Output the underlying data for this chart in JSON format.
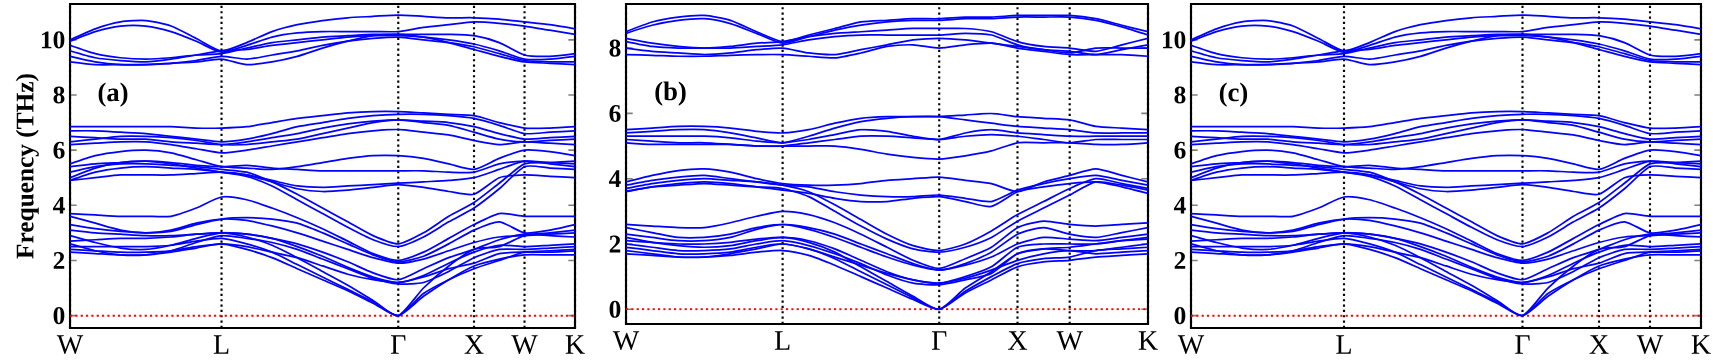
{
  "chart_data": [
    {
      "type": "line",
      "ylabel": "Frequency (THz)",
      "annotations": [
        "(a)"
      ],
      "color": "#0000ff",
      "marker": "none",
      "line_style": "solid",
      "grid": "x",
      "categories": [
        "W",
        null,
        null,
        null,
        null,
        null,
        "L",
        null,
        null,
        null,
        null,
        null,
        null,
        "Γ",
        null,
        null,
        "X",
        null,
        "W",
        null,
        "K"
      ],
      "ylim": [
        -0.45,
        11.3
      ],
      "yticks": [
        0,
        2,
        4,
        6,
        8,
        10
      ],
      "ref_lines": [
        {
          "axis": "y",
          "value": 0,
          "color": "#ff0000",
          "line_style": "dotted"
        }
      ],
      "series": [
        {
          "values": [
            10.0,
            10.4,
            10.65,
            10.7,
            10.5,
            10.05,
            9.6,
            9.9,
            10.3,
            10.55,
            10.7,
            10.8,
            10.85,
            10.9,
            10.85,
            10.8,
            10.8,
            10.75,
            10.65,
            10.55,
            10.4
          ]
        },
        {
          "values": [
            9.95,
            10.3,
            10.5,
            10.5,
            10.3,
            9.95,
            9.55,
            9.8,
            10.1,
            10.25,
            10.3,
            10.3,
            10.3,
            10.3,
            10.45,
            10.55,
            10.65,
            10.6,
            10.5,
            10.35,
            10.2
          ]
        },
        {
          "values": [
            9.8,
            9.5,
            9.35,
            9.3,
            9.35,
            9.45,
            9.5,
            9.7,
            9.9,
            10.0,
            10.1,
            10.15,
            10.2,
            10.2,
            10.2,
            10.2,
            10.15,
            9.9,
            9.45,
            9.4,
            9.5
          ]
        },
        {
          "values": [
            9.6,
            9.35,
            9.25,
            9.2,
            9.3,
            9.45,
            9.6,
            9.65,
            9.8,
            9.9,
            10.0,
            10.1,
            10.15,
            10.15,
            10.1,
            10.0,
            9.85,
            9.6,
            9.3,
            9.3,
            9.4
          ]
        },
        {
          "values": [
            9.4,
            9.2,
            9.1,
            9.1,
            9.15,
            9.25,
            9.4,
            9.3,
            9.45,
            9.6,
            9.8,
            9.95,
            10.05,
            10.1,
            10.0,
            9.9,
            9.75,
            9.5,
            9.25,
            9.2,
            9.2
          ]
        },
        {
          "values": [
            9.2,
            9.1,
            9.1,
            9.1,
            9.15,
            9.2,
            9.3,
            9.1,
            9.2,
            9.4,
            9.7,
            9.95,
            10.15,
            10.2,
            10.1,
            9.9,
            9.65,
            9.4,
            9.2,
            9.15,
            9.1
          ]
        },
        {
          "values": [
            6.85,
            6.85,
            6.85,
            6.85,
            6.85,
            6.8,
            6.8,
            6.85,
            7.0,
            7.15,
            7.25,
            7.35,
            7.4,
            7.4,
            7.35,
            7.3,
            7.25,
            7.0,
            6.8,
            6.8,
            6.85
          ]
        },
        {
          "values": [
            6.7,
            6.7,
            6.65,
            6.6,
            6.5,
            6.4,
            6.3,
            6.4,
            6.6,
            6.85,
            7.0,
            7.15,
            7.25,
            7.3,
            7.3,
            7.25,
            7.15,
            6.9,
            6.6,
            6.65,
            6.7
          ]
        },
        {
          "values": [
            6.5,
            6.45,
            6.4,
            6.4,
            6.3,
            6.25,
            6.2,
            6.3,
            6.45,
            6.6,
            6.8,
            6.95,
            7.05,
            7.1,
            7.05,
            7.0,
            6.85,
            6.6,
            6.4,
            6.45,
            6.5
          ]
        },
        {
          "values": [
            6.3,
            6.4,
            6.5,
            6.5,
            6.45,
            6.35,
            6.2,
            6.2,
            6.3,
            6.4,
            6.6,
            6.8,
            7.0,
            7.1,
            7.0,
            6.9,
            6.65,
            6.4,
            6.3,
            6.35,
            6.4
          ]
        },
        {
          "values": [
            6.2,
            6.25,
            6.3,
            6.3,
            6.2,
            6.05,
            5.9,
            6.0,
            6.15,
            6.3,
            6.45,
            6.6,
            6.7,
            6.75,
            6.65,
            6.55,
            6.35,
            6.2,
            6.3,
            6.25,
            6.2
          ]
        },
        {
          "values": [
            5.5,
            5.8,
            5.95,
            6.0,
            5.9,
            5.65,
            5.4,
            5.35,
            5.3,
            5.4,
            5.55,
            5.7,
            5.8,
            5.8,
            5.7,
            5.5,
            5.3,
            5.7,
            6.0,
            5.95,
            5.8
          ]
        },
        {
          "values": [
            5.4,
            5.5,
            5.55,
            5.6,
            5.55,
            5.45,
            5.4,
            5.45,
            5.35,
            5.3,
            5.25,
            5.25,
            5.25,
            5.25,
            5.25,
            5.2,
            5.2,
            5.5,
            5.6,
            5.55,
            5.5
          ]
        },
        {
          "values": [
            5.0,
            5.35,
            5.55,
            5.6,
            5.5,
            5.35,
            5.2,
            5.1,
            4.9,
            4.7,
            4.65,
            4.7,
            4.75,
            4.8,
            4.85,
            4.9,
            5.0,
            5.3,
            5.6,
            5.5,
            5.4
          ]
        },
        {
          "values": [
            4.9,
            5.0,
            5.1,
            5.1,
            5.1,
            5.15,
            5.2,
            5.1,
            4.85,
            4.6,
            4.5,
            4.55,
            4.65,
            4.75,
            4.65,
            4.5,
            4.4,
            5.0,
            5.1,
            5.05,
            5.0
          ]
        },
        {
          "values": [
            5.2,
            5.4,
            5.5,
            5.5,
            5.45,
            5.4,
            5.3,
            5.2,
            4.85,
            4.4,
            3.9,
            3.4,
            2.9,
            2.6,
            3.0,
            3.6,
            4.1,
            4.8,
            5.5,
            5.55,
            5.6
          ]
        },
        {
          "values": [
            4.9,
            5.2,
            5.35,
            5.4,
            5.35,
            5.3,
            5.2,
            5.05,
            4.7,
            4.2,
            3.7,
            3.2,
            2.75,
            2.5,
            2.85,
            3.4,
            3.9,
            4.6,
            5.4,
            5.35,
            5.3
          ]
        },
        {
          "values": [
            3.7,
            3.65,
            3.6,
            3.6,
            3.6,
            3.9,
            4.3,
            4.2,
            3.9,
            3.55,
            3.15,
            2.7,
            2.25,
            2.0,
            2.3,
            2.8,
            3.3,
            3.7,
            3.6,
            3.6,
            3.6
          ]
        },
        {
          "values": [
            3.6,
            3.35,
            3.1,
            3.0,
            3.05,
            3.3,
            3.5,
            3.55,
            3.5,
            3.35,
            3.0,
            2.6,
            2.2,
            1.95,
            2.15,
            2.6,
            3.1,
            3.4,
            3.0,
            3.1,
            3.3
          ]
        },
        {
          "values": [
            3.3,
            3.15,
            3.05,
            3.0,
            3.1,
            3.35,
            3.5,
            3.45,
            3.25,
            3.0,
            2.7,
            2.4,
            2.1,
            1.9,
            2.05,
            2.35,
            2.65,
            2.85,
            2.9,
            2.95,
            3.0
          ]
        },
        {
          "values": [
            3.1,
            3.0,
            2.95,
            2.9,
            2.9,
            2.95,
            3.0,
            2.95,
            2.8,
            2.6,
            2.3,
            1.95,
            1.55,
            1.3,
            1.7,
            2.1,
            2.4,
            2.75,
            2.95,
            2.9,
            2.85
          ]
        },
        {
          "values": [
            2.9,
            2.65,
            2.45,
            2.4,
            2.55,
            2.8,
            3.0,
            2.95,
            2.8,
            2.5,
            2.15,
            1.75,
            1.4,
            1.2,
            1.45,
            1.9,
            2.3,
            2.55,
            2.5,
            2.55,
            2.6
          ]
        },
        {
          "values": [
            2.6,
            2.35,
            2.2,
            2.2,
            2.35,
            2.65,
            2.9,
            2.8,
            2.65,
            2.4,
            2.05,
            1.7,
            1.35,
            1.15,
            1.2,
            1.6,
            2.1,
            2.4,
            2.4,
            2.45,
            2.5
          ]
        },
        {
          "values": [
            2.4,
            2.35,
            2.3,
            2.3,
            2.35,
            2.5,
            2.6,
            2.5,
            2.3,
            2.1,
            1.8,
            1.5,
            1.3,
            1.2,
            1.4,
            1.7,
            1.9,
            2.25,
            2.3,
            2.3,
            2.35
          ]
        },
        {
          "values": [
            2.3,
            2.25,
            2.2,
            2.2,
            2.3,
            2.45,
            2.6,
            2.4,
            2.1,
            1.7,
            1.3,
            0.9,
            0.45,
            0,
            0.7,
            1.3,
            1.8,
            2.05,
            2.2,
            2.2,
            2.2
          ]
        },
        {
          "values": [
            2.5,
            2.5,
            2.5,
            2.5,
            2.55,
            2.7,
            2.8,
            2.6,
            2.3,
            1.85,
            1.4,
            0.95,
            0.5,
            0,
            0.8,
            1.3,
            1.7,
            2.0,
            2.3,
            2.35,
            2.4
          ]
        },
        {
          "values": [
            2.7,
            2.75,
            2.8,
            2.8,
            2.85,
            2.95,
            3.0,
            2.85,
            2.55,
            2.1,
            1.6,
            1.1,
            0.55,
            0,
            1.0,
            1.8,
            2.4,
            2.5,
            2.9,
            3.0,
            3.1
          ]
        }
      ]
    },
    {
      "type": "line",
      "annotations": [
        "(b)"
      ],
      "color": "#0000ff",
      "marker": "none",
      "line_style": "solid",
      "grid": "x",
      "categories": [
        "W",
        null,
        null,
        null,
        null,
        null,
        "L",
        null,
        null,
        null,
        null,
        null,
        "Γ",
        null,
        null,
        "X",
        null,
        "W",
        null,
        null,
        "K"
      ],
      "ylim": [
        -0.45,
        9.35
      ],
      "yticks": [
        0,
        2,
        4,
        6,
        8
      ],
      "ref_lines": [
        {
          "axis": "y",
          "value": 0,
          "color": "#ff0000",
          "line_style": "dotted"
        }
      ],
      "series": [
        {
          "values": [
            8.5,
            8.8,
            8.95,
            9.0,
            8.85,
            8.5,
            8.2,
            8.4,
            8.6,
            8.8,
            8.85,
            8.9,
            8.9,
            8.95,
            8.95,
            9.0,
            9.0,
            9.0,
            8.9,
            8.7,
            8.5
          ]
        },
        {
          "values": [
            8.45,
            8.7,
            8.85,
            8.9,
            8.75,
            8.45,
            8.15,
            8.35,
            8.55,
            8.7,
            8.8,
            8.85,
            8.85,
            8.9,
            8.9,
            8.95,
            8.95,
            8.95,
            8.85,
            8.65,
            8.4
          ]
        },
        {
          "values": [
            8.3,
            8.15,
            8.05,
            8.0,
            8.05,
            8.15,
            8.2,
            8.35,
            8.45,
            8.5,
            8.55,
            8.6,
            8.6,
            8.6,
            8.5,
            8.2,
            8.05,
            8.0,
            7.9,
            8.1,
            8.3
          ]
        },
        {
          "values": [
            8.2,
            8.05,
            8.0,
            8.0,
            8.0,
            8.05,
            8.1,
            8.25,
            8.35,
            8.4,
            8.4,
            8.4,
            8.4,
            8.45,
            8.4,
            8.1,
            7.95,
            7.9,
            7.8,
            7.95,
            8.1
          ]
        },
        {
          "values": [
            8.0,
            7.9,
            7.85,
            7.8,
            7.85,
            7.95,
            8.0,
            7.85,
            7.8,
            7.95,
            8.1,
            8.25,
            8.3,
            8.25,
            8.15,
            8.05,
            7.95,
            7.85,
            8.0,
            8.0,
            8.0
          ]
        },
        {
          "values": [
            7.8,
            7.78,
            7.75,
            7.75,
            7.78,
            7.8,
            7.8,
            7.75,
            7.7,
            7.85,
            8.05,
            8.1,
            8.0,
            8.1,
            8.15,
            8.0,
            7.9,
            7.8,
            7.8,
            7.8,
            7.75
          ]
        },
        {
          "values": [
            5.5,
            5.55,
            5.6,
            5.6,
            5.55,
            5.45,
            5.4,
            5.5,
            5.7,
            5.85,
            5.9,
            5.9,
            5.9,
            5.95,
            6.0,
            5.9,
            5.85,
            5.8,
            5.6,
            5.55,
            5.5
          ]
        },
        {
          "values": [
            5.4,
            5.45,
            5.5,
            5.5,
            5.4,
            5.25,
            5.1,
            5.3,
            5.55,
            5.75,
            5.85,
            5.9,
            5.9,
            5.8,
            5.7,
            5.6,
            5.55,
            5.5,
            5.4,
            5.4,
            5.4
          ]
        },
        {
          "values": [
            5.3,
            5.3,
            5.3,
            5.3,
            5.25,
            5.15,
            5.1,
            5.2,
            5.35,
            5.5,
            5.45,
            5.3,
            5.2,
            5.4,
            5.5,
            5.4,
            5.35,
            5.3,
            5.3,
            5.3,
            5.3
          ]
        },
        {
          "values": [
            5.2,
            5.15,
            5.1,
            5.1,
            5.05,
            5.0,
            5.0,
            5.1,
            5.2,
            5.3,
            5.3,
            5.25,
            5.2,
            5.3,
            5.35,
            5.3,
            5.2,
            5.1,
            5.2,
            5.2,
            5.2
          ]
        },
        {
          "values": [
            5.1,
            5.05,
            5.05,
            5.05,
            5.05,
            5.0,
            5.0,
            5.0,
            5.0,
            4.9,
            4.75,
            4.65,
            4.6,
            4.7,
            4.85,
            5.1,
            5.1,
            5.1,
            5.05,
            5.05,
            5.1
          ]
        },
        {
          "values": [
            3.9,
            4.1,
            4.25,
            4.3,
            4.2,
            4.0,
            3.85,
            3.8,
            3.8,
            3.85,
            3.95,
            4.0,
            4.05,
            3.95,
            3.85,
            3.6,
            3.9,
            4.1,
            4.3,
            4.1,
            3.9
          ]
        },
        {
          "values": [
            3.8,
            3.95,
            4.05,
            4.1,
            4.0,
            3.9,
            3.8,
            3.75,
            3.6,
            3.5,
            3.45,
            3.45,
            3.5,
            3.4,
            3.3,
            3.65,
            3.85,
            4.0,
            4.1,
            3.95,
            3.8
          ]
        },
        {
          "values": [
            3.6,
            3.75,
            3.85,
            3.9,
            3.85,
            3.75,
            3.65,
            3.55,
            3.4,
            3.3,
            3.3,
            3.4,
            3.45,
            3.3,
            3.15,
            3.6,
            3.75,
            3.85,
            3.9,
            3.75,
            3.55
          ]
        },
        {
          "values": [
            3.7,
            3.85,
            3.95,
            4.0,
            3.95,
            3.9,
            3.8,
            3.6,
            3.2,
            2.75,
            2.3,
            1.95,
            1.8,
            2.0,
            2.4,
            2.9,
            3.3,
            3.7,
            4.0,
            3.85,
            3.7
          ]
        },
        {
          "values": [
            3.62,
            3.75,
            3.8,
            3.85,
            3.8,
            3.75,
            3.7,
            3.45,
            3.0,
            2.55,
            2.15,
            1.85,
            1.75,
            1.9,
            2.2,
            2.7,
            3.1,
            3.5,
            3.9,
            3.8,
            3.65
          ]
        },
        {
          "values": [
            2.6,
            2.55,
            2.5,
            2.5,
            2.65,
            2.85,
            3.0,
            2.9,
            2.65,
            2.3,
            1.9,
            1.5,
            1.25,
            1.55,
            1.9,
            2.5,
            2.7,
            2.6,
            2.55,
            2.6,
            2.65
          ]
        },
        {
          "values": [
            2.5,
            2.35,
            2.2,
            2.2,
            2.3,
            2.5,
            2.6,
            2.5,
            2.3,
            2.0,
            1.7,
            1.4,
            1.2,
            1.4,
            1.75,
            2.3,
            2.5,
            2.3,
            2.2,
            2.35,
            2.5
          ]
        },
        {
          "values": [
            2.3,
            2.2,
            2.1,
            2.1,
            2.2,
            2.45,
            2.6,
            2.45,
            2.2,
            1.9,
            1.6,
            1.35,
            1.2,
            1.35,
            1.6,
            2.0,
            2.2,
            2.15,
            2.1,
            2.2,
            2.3
          ]
        },
        {
          "values": [
            2.2,
            2.05,
            1.95,
            1.9,
            1.95,
            2.1,
            2.2,
            2.1,
            1.85,
            1.5,
            1.15,
            0.9,
            0.8,
            1.0,
            1.3,
            1.9,
            2.0,
            2.0,
            2.0,
            2.1,
            2.2
          ]
        },
        {
          "values": [
            2.0,
            1.9,
            1.8,
            1.8,
            1.85,
            2.0,
            2.1,
            1.95,
            1.7,
            1.4,
            1.05,
            0.8,
            0.75,
            0.9,
            1.1,
            1.7,
            1.85,
            1.8,
            1.8,
            1.9,
            2.0
          ]
        },
        {
          "values": [
            1.8,
            1.7,
            1.6,
            1.6,
            1.7,
            1.85,
            2.0,
            1.85,
            1.6,
            1.35,
            1.1,
            0.9,
            0.8,
            0.95,
            1.2,
            1.5,
            1.7,
            1.8,
            1.7,
            1.75,
            1.8
          ]
        },
        {
          "values": [
            1.7,
            1.65,
            1.6,
            1.6,
            1.65,
            1.75,
            1.8,
            1.65,
            1.35,
            1.0,
            0.65,
            0.3,
            0,
            0.5,
            0.9,
            1.3,
            1.45,
            1.5,
            1.6,
            1.65,
            1.7
          ]
        },
        {
          "values": [
            1.9,
            1.8,
            1.7,
            1.7,
            1.75,
            1.9,
            2.0,
            1.85,
            1.55,
            1.15,
            0.75,
            0.35,
            0,
            0.55,
            1.0,
            1.4,
            1.55,
            1.6,
            1.8,
            1.85,
            1.9
          ]
        },
        {
          "values": [
            2.1,
            2.05,
            2.0,
            2.0,
            2.05,
            2.15,
            2.2,
            2.05,
            1.75,
            1.3,
            0.85,
            0.4,
            0,
            0.65,
            1.15,
            1.7,
            1.85,
            1.9,
            2.0,
            2.1,
            2.15
          ]
        }
      ]
    },
    {
      "type": "line",
      "annotations": [
        "(c)"
      ],
      "color": "#0000ff",
      "marker": "none",
      "line_style": "solid",
      "grid": "x",
      "categories": [
        "W",
        null,
        null,
        null,
        null,
        null,
        "L",
        null,
        null,
        null,
        null,
        null,
        null,
        "Γ",
        null,
        null,
        "X",
        null,
        "W",
        null,
        "K"
      ],
      "ylim": [
        -0.45,
        11.3
      ],
      "yticks": [
        0,
        2,
        4,
        6,
        8,
        10
      ],
      "ref_lines": [
        {
          "axis": "y",
          "value": 0,
          "color": "#ff0000",
          "line_style": "dotted"
        }
      ],
      "series": [
        {
          "values": [
            10.0,
            10.4,
            10.65,
            10.7,
            10.5,
            10.05,
            9.6,
            9.9,
            10.3,
            10.55,
            10.7,
            10.8,
            10.85,
            10.9,
            10.85,
            10.8,
            10.8,
            10.75,
            10.65,
            10.55,
            10.4
          ]
        },
        {
          "values": [
            9.95,
            10.3,
            10.5,
            10.5,
            10.3,
            9.95,
            9.55,
            9.8,
            10.1,
            10.25,
            10.3,
            10.3,
            10.3,
            10.3,
            10.45,
            10.55,
            10.65,
            10.6,
            10.5,
            10.35,
            10.2
          ]
        },
        {
          "values": [
            9.8,
            9.5,
            9.35,
            9.3,
            9.35,
            9.45,
            9.5,
            9.7,
            9.9,
            10.0,
            10.1,
            10.15,
            10.2,
            10.2,
            10.2,
            10.2,
            10.15,
            9.9,
            9.45,
            9.4,
            9.5
          ]
        },
        {
          "values": [
            9.6,
            9.35,
            9.25,
            9.2,
            9.3,
            9.45,
            9.6,
            9.65,
            9.8,
            9.9,
            10.0,
            10.1,
            10.15,
            10.15,
            10.1,
            10.0,
            9.85,
            9.6,
            9.3,
            9.3,
            9.4
          ]
        },
        {
          "values": [
            9.4,
            9.2,
            9.1,
            9.1,
            9.15,
            9.25,
            9.4,
            9.3,
            9.45,
            9.6,
            9.8,
            9.95,
            10.05,
            10.1,
            10.0,
            9.9,
            9.75,
            9.5,
            9.25,
            9.2,
            9.2
          ]
        },
        {
          "values": [
            9.2,
            9.1,
            9.1,
            9.1,
            9.15,
            9.2,
            9.3,
            9.1,
            9.2,
            9.4,
            9.7,
            9.95,
            10.15,
            10.2,
            10.1,
            9.9,
            9.65,
            9.4,
            9.2,
            9.15,
            9.1
          ]
        },
        {
          "values": [
            6.85,
            6.85,
            6.85,
            6.85,
            6.85,
            6.8,
            6.8,
            6.85,
            7.0,
            7.15,
            7.25,
            7.35,
            7.4,
            7.4,
            7.35,
            7.3,
            7.25,
            7.0,
            6.8,
            6.8,
            6.85
          ]
        },
        {
          "values": [
            6.7,
            6.7,
            6.65,
            6.6,
            6.5,
            6.4,
            6.3,
            6.4,
            6.6,
            6.85,
            7.0,
            7.15,
            7.25,
            7.3,
            7.3,
            7.25,
            7.15,
            6.9,
            6.6,
            6.65,
            6.7
          ]
        },
        {
          "values": [
            6.5,
            6.45,
            6.4,
            6.4,
            6.3,
            6.25,
            6.2,
            6.3,
            6.45,
            6.6,
            6.8,
            6.95,
            7.05,
            7.1,
            7.05,
            7.0,
            6.85,
            6.6,
            6.4,
            6.45,
            6.5
          ]
        },
        {
          "values": [
            6.3,
            6.4,
            6.5,
            6.5,
            6.45,
            6.35,
            6.2,
            6.2,
            6.3,
            6.4,
            6.6,
            6.8,
            7.0,
            7.1,
            7.0,
            6.9,
            6.65,
            6.4,
            6.3,
            6.35,
            6.4
          ]
        },
        {
          "values": [
            6.2,
            6.25,
            6.3,
            6.3,
            6.2,
            6.05,
            5.9,
            6.0,
            6.15,
            6.3,
            6.45,
            6.6,
            6.7,
            6.75,
            6.65,
            6.55,
            6.35,
            6.2,
            6.3,
            6.25,
            6.2
          ]
        },
        {
          "values": [
            5.5,
            5.8,
            5.95,
            6.0,
            5.9,
            5.65,
            5.4,
            5.35,
            5.3,
            5.4,
            5.55,
            5.7,
            5.8,
            5.8,
            5.7,
            5.5,
            5.3,
            5.7,
            6.0,
            5.95,
            5.8
          ]
        },
        {
          "values": [
            5.4,
            5.5,
            5.55,
            5.6,
            5.55,
            5.45,
            5.4,
            5.45,
            5.35,
            5.3,
            5.25,
            5.25,
            5.25,
            5.25,
            5.25,
            5.2,
            5.2,
            5.5,
            5.6,
            5.55,
            5.5
          ]
        },
        {
          "values": [
            5.0,
            5.35,
            5.55,
            5.6,
            5.5,
            5.35,
            5.2,
            5.1,
            4.9,
            4.7,
            4.65,
            4.7,
            4.75,
            4.8,
            4.85,
            4.9,
            5.0,
            5.3,
            5.6,
            5.5,
            5.4
          ]
        },
        {
          "values": [
            4.9,
            5.0,
            5.1,
            5.1,
            5.1,
            5.15,
            5.2,
            5.1,
            4.85,
            4.6,
            4.5,
            4.55,
            4.65,
            4.75,
            4.65,
            4.5,
            4.4,
            5.0,
            5.1,
            5.05,
            5.0
          ]
        },
        {
          "values": [
            5.2,
            5.4,
            5.5,
            5.5,
            5.45,
            5.4,
            5.3,
            5.2,
            4.85,
            4.4,
            3.9,
            3.4,
            2.9,
            2.6,
            3.0,
            3.6,
            4.1,
            4.8,
            5.5,
            5.55,
            5.6
          ]
        },
        {
          "values": [
            4.9,
            5.2,
            5.35,
            5.4,
            5.35,
            5.3,
            5.2,
            5.05,
            4.7,
            4.2,
            3.7,
            3.2,
            2.75,
            2.5,
            2.85,
            3.4,
            3.9,
            4.6,
            5.4,
            5.35,
            5.3
          ]
        },
        {
          "values": [
            3.7,
            3.65,
            3.6,
            3.6,
            3.6,
            3.9,
            4.3,
            4.2,
            3.9,
            3.55,
            3.15,
            2.7,
            2.25,
            2.0,
            2.3,
            2.8,
            3.3,
            3.7,
            3.6,
            3.6,
            3.6
          ]
        },
        {
          "values": [
            3.6,
            3.35,
            3.1,
            3.0,
            3.05,
            3.3,
            3.5,
            3.55,
            3.5,
            3.35,
            3.0,
            2.6,
            2.2,
            1.95,
            2.15,
            2.6,
            3.1,
            3.4,
            3.0,
            3.1,
            3.3
          ]
        },
        {
          "values": [
            3.3,
            3.15,
            3.05,
            3.0,
            3.1,
            3.35,
            3.5,
            3.45,
            3.25,
            3.0,
            2.7,
            2.4,
            2.1,
            1.9,
            2.05,
            2.35,
            2.65,
            2.85,
            2.9,
            2.95,
            3.0
          ]
        },
        {
          "values": [
            3.1,
            3.0,
            2.95,
            2.9,
            2.9,
            2.95,
            3.0,
            2.95,
            2.8,
            2.6,
            2.3,
            1.95,
            1.55,
            1.3,
            1.7,
            2.1,
            2.4,
            2.75,
            2.95,
            2.9,
            2.85
          ]
        },
        {
          "values": [
            2.9,
            2.65,
            2.45,
            2.4,
            2.55,
            2.8,
            3.0,
            2.95,
            2.8,
            2.5,
            2.15,
            1.75,
            1.4,
            1.2,
            1.45,
            1.9,
            2.3,
            2.55,
            2.5,
            2.55,
            2.6
          ]
        },
        {
          "values": [
            2.6,
            2.35,
            2.2,
            2.2,
            2.35,
            2.65,
            2.9,
            2.8,
            2.65,
            2.4,
            2.05,
            1.7,
            1.35,
            1.15,
            1.2,
            1.6,
            2.1,
            2.4,
            2.4,
            2.45,
            2.5
          ]
        },
        {
          "values": [
            2.4,
            2.35,
            2.3,
            2.3,
            2.35,
            2.5,
            2.6,
            2.5,
            2.3,
            2.1,
            1.8,
            1.5,
            1.3,
            1.2,
            1.4,
            1.7,
            1.9,
            2.25,
            2.3,
            2.3,
            2.35
          ]
        },
        {
          "values": [
            2.3,
            2.25,
            2.2,
            2.2,
            2.3,
            2.45,
            2.6,
            2.4,
            2.1,
            1.7,
            1.3,
            0.9,
            0.45,
            0,
            0.7,
            1.3,
            1.8,
            2.05,
            2.2,
            2.2,
            2.2
          ]
        },
        {
          "values": [
            2.5,
            2.5,
            2.5,
            2.5,
            2.55,
            2.7,
            2.8,
            2.6,
            2.3,
            1.85,
            1.4,
            0.95,
            0.5,
            0,
            0.8,
            1.3,
            1.7,
            2.0,
            2.3,
            2.35,
            2.4
          ]
        },
        {
          "values": [
            2.7,
            2.75,
            2.8,
            2.8,
            2.85,
            2.95,
            3.0,
            2.85,
            2.55,
            2.1,
            1.6,
            1.1,
            0.55,
            0,
            1.0,
            1.8,
            2.4,
            2.5,
            2.9,
            3.0,
            3.1
          ]
        }
      ]
    }
  ]
}
